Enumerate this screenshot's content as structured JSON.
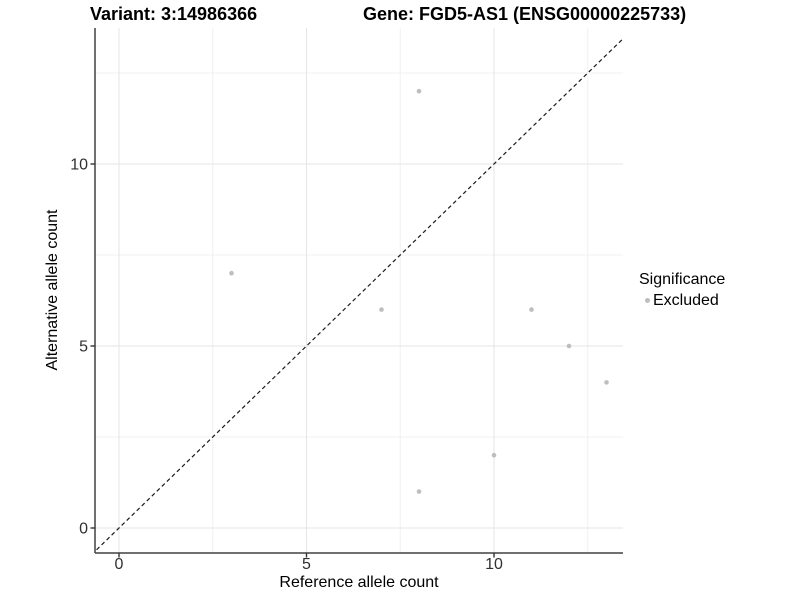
{
  "titles": {
    "variant": "Variant: 3:14986366",
    "gene": "Gene: FGD5-AS1 (ENSG00000225733)"
  },
  "chart_data": {
    "type": "scatter",
    "xlabel": "Reference allele count",
    "ylabel": "Alternative allele count",
    "x_ticks": [
      0,
      5,
      10
    ],
    "y_ticks": [
      0,
      5,
      10
    ],
    "x_minor_ticks": [
      2.5,
      7.5,
      12.5
    ],
    "y_minor_ticks": [
      2.5,
      7.5,
      12.5
    ],
    "xlim": [
      -0.64,
      13.44
    ],
    "ylim": [
      -0.69,
      13.74
    ],
    "grid": true,
    "points": [
      {
        "x": 3,
        "y": 7
      },
      {
        "x": 8,
        "y": 12
      },
      {
        "x": 7,
        "y": 6
      },
      {
        "x": 11,
        "y": 6
      },
      {
        "x": 12,
        "y": 5
      },
      {
        "x": 13,
        "y": 4
      },
      {
        "x": 10,
        "y": 2
      },
      {
        "x": 8,
        "y": 1
      }
    ],
    "point_color": "#bebebe",
    "identity_line": {
      "slope": 1,
      "intercept": 0,
      "style": "dashed",
      "color": "#1a1a1a"
    },
    "legend": {
      "title": "Significance",
      "position": "right",
      "items": [
        {
          "label": "Excluded",
          "color": "#bebebe"
        }
      ]
    }
  }
}
